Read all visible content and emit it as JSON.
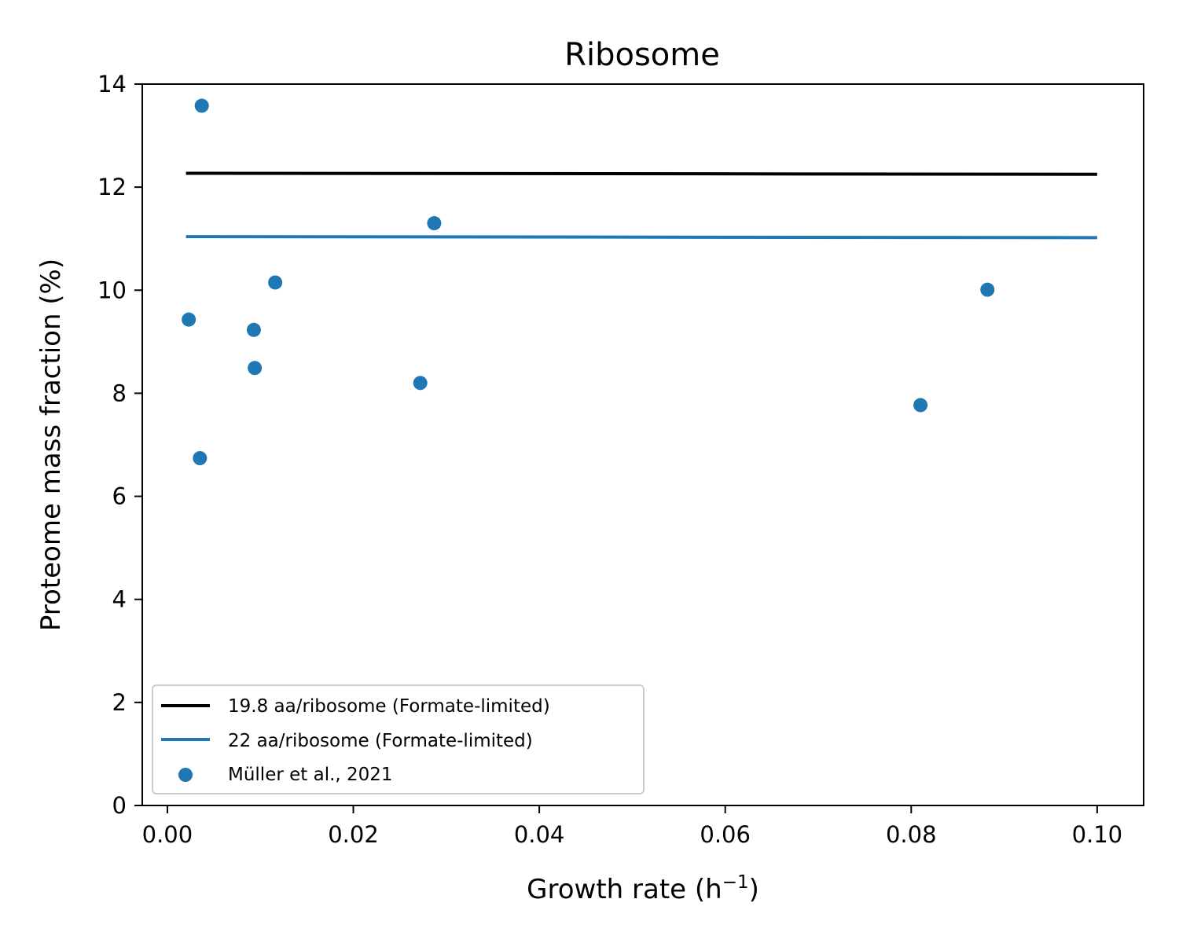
{
  "chart_data": {
    "type": "scatter",
    "title": "Ribosome",
    "xlabel_base": "Growth rate (h",
    "xlabel_sup": "−1",
    "xlabel_end": ")",
    "ylabel": "Proteome mass fraction (%)",
    "xlim": [
      -0.0027,
      0.105
    ],
    "ylim": [
      0,
      14
    ],
    "x_ticks": [
      0.0,
      0.02,
      0.04,
      0.06,
      0.08,
      0.1
    ],
    "x_tick_labels": [
      "0.00",
      "0.02",
      "0.04",
      "0.06",
      "0.08",
      "0.10"
    ],
    "y_ticks": [
      0,
      2,
      4,
      6,
      8,
      10,
      12,
      14
    ],
    "y_tick_labels": [
      "0",
      "2",
      "4",
      "6",
      "8",
      "10",
      "12",
      "14"
    ],
    "grid": false,
    "legend_position": "lower-left",
    "lines": [
      {
        "name": "19.8 aa/ribosome (Formate-limited)",
        "color": "#000000",
        "x": [
          0.002,
          0.1
        ],
        "y": [
          12.27,
          12.25
        ]
      },
      {
        "name": "22 aa/ribosome (Formate-limited)",
        "color": "#1f77b4",
        "x": [
          0.002,
          0.1
        ],
        "y": [
          11.04,
          11.02
        ]
      }
    ],
    "scatter": {
      "name": "Müller et al., 2021",
      "color": "#1f77b4",
      "points": [
        {
          "x": 0.0037,
          "y": 13.58
        },
        {
          "x": 0.0023,
          "y": 9.43
        },
        {
          "x": 0.0035,
          "y": 6.74
        },
        {
          "x": 0.0093,
          "y": 9.23
        },
        {
          "x": 0.0094,
          "y": 8.49
        },
        {
          "x": 0.0116,
          "y": 10.15
        },
        {
          "x": 0.0272,
          "y": 8.2
        },
        {
          "x": 0.0287,
          "y": 11.3
        },
        {
          "x": 0.081,
          "y": 7.77
        },
        {
          "x": 0.0882,
          "y": 10.01
        }
      ]
    }
  }
}
